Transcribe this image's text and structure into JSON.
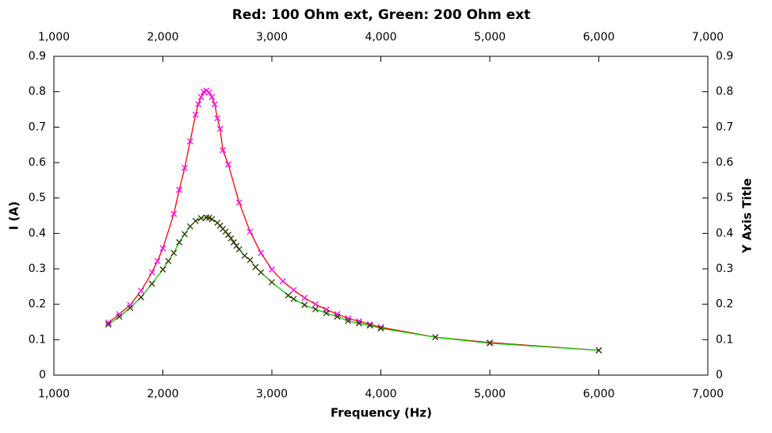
{
  "chart_data": {
    "type": "scatter_line",
    "title": "Red: 100 Ohm ext, Green: 200 Ohm ext",
    "xlabel": "Frequency (Hz)",
    "ylabel": "I (A)",
    "y2label": "Y Axis Title",
    "xlim": [
      1000,
      7000
    ],
    "xticks": [
      {
        "value": 1000,
        "label": "1,000"
      },
      {
        "value": 2000,
        "label": "2,000"
      },
      {
        "value": 3000,
        "label": "3,000"
      },
      {
        "value": 4000,
        "label": "4,000"
      },
      {
        "value": 5000,
        "label": "5,000"
      },
      {
        "value": 6000,
        "label": "6,000"
      },
      {
        "value": 7000,
        "label": "7,000"
      }
    ],
    "ylim": [
      0,
      0.9
    ],
    "yticks": [
      0,
      0.1,
      0.2,
      0.3,
      0.4,
      0.5,
      0.6,
      0.7,
      0.8,
      0.9
    ],
    "series": [
      {
        "color": "#ff0000",
        "marker_color": "#ff00ff",
        "x": [
          1500,
          1600,
          1700,
          1800,
          1900,
          1950,
          2000,
          2100,
          2150,
          2200,
          2250,
          2300,
          2325,
          2350,
          2375,
          2400,
          2425,
          2450,
          2475,
          2500,
          2525,
          2550,
          2600,
          2700,
          2800,
          2900,
          3000,
          3100,
          3200,
          3300,
          3400,
          3500,
          3600,
          3700,
          3800,
          3900,
          4000,
          4500,
          5000,
          6000
        ],
        "values": [
          0.148,
          0.172,
          0.198,
          0.238,
          0.29,
          0.322,
          0.358,
          0.455,
          0.523,
          0.585,
          0.66,
          0.735,
          0.765,
          0.785,
          0.8,
          0.803,
          0.798,
          0.785,
          0.765,
          0.725,
          0.695,
          0.635,
          0.595,
          0.487,
          0.405,
          0.345,
          0.298,
          0.265,
          0.24,
          0.218,
          0.2,
          0.185,
          0.172,
          0.16,
          0.152,
          0.143,
          0.135,
          0.107,
          0.092,
          0.07
        ]
      },
      {
        "color": "#00cc00",
        "marker_color": "#333300",
        "x": [
          1500,
          1600,
          1700,
          1800,
          1900,
          2000,
          2050,
          2100,
          2150,
          2200,
          2250,
          2300,
          2350,
          2400,
          2425,
          2450,
          2500,
          2525,
          2550,
          2575,
          2600,
          2625,
          2650,
          2675,
          2700,
          2750,
          2800,
          2850,
          2900,
          3000,
          3150,
          3200,
          3300,
          3400,
          3500,
          3600,
          3700,
          3800,
          3900,
          4000,
          4500,
          5000,
          6000
        ],
        "values": [
          0.143,
          0.165,
          0.19,
          0.22,
          0.258,
          0.298,
          0.322,
          0.345,
          0.375,
          0.398,
          0.42,
          0.435,
          0.443,
          0.445,
          0.444,
          0.44,
          0.43,
          0.422,
          0.413,
          0.405,
          0.396,
          0.386,
          0.375,
          0.365,
          0.355,
          0.337,
          0.325,
          0.305,
          0.29,
          0.262,
          0.225,
          0.215,
          0.198,
          0.186,
          0.175,
          0.165,
          0.153,
          0.146,
          0.14,
          0.132,
          0.107,
          0.09,
          0.07
        ]
      }
    ]
  }
}
